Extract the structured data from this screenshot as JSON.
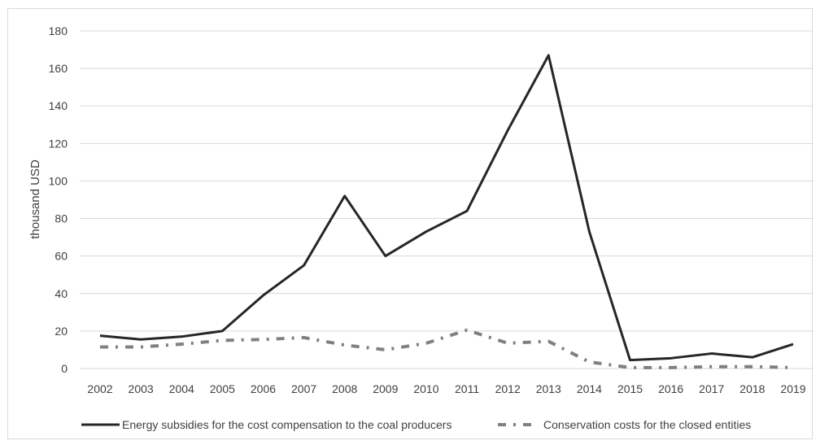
{
  "chart_data": {
    "type": "line",
    "title": "",
    "xlabel": "",
    "ylabel": "thousand USD",
    "ylim": [
      0,
      180
    ],
    "ytick_step": 20,
    "grid": true,
    "legend_position": "bottom",
    "categories": [
      "2002",
      "2003",
      "2004",
      "2005",
      "2006",
      "2007",
      "2008",
      "2009",
      "2010",
      "2011",
      "2012",
      "2013",
      "2014",
      "2015",
      "2016",
      "2017",
      "2018",
      "2019"
    ],
    "series": [
      {
        "name": "Energy subsidies for the cost compensation to the coal producers",
        "style": "solid",
        "color": "#262626",
        "values": [
          17.5,
          15.5,
          17,
          20,
          39,
          55,
          92,
          60,
          73,
          84,
          127,
          167,
          73,
          4.5,
          5.5,
          8,
          6,
          13
        ]
      },
      {
        "name": "Conservation costs for the closed entities",
        "style": "dash-dot",
        "color": "#808080",
        "values": [
          11.5,
          11.5,
          13,
          15,
          15.5,
          16.5,
          12.5,
          10,
          13.5,
          20.5,
          13.5,
          14.5,
          3.5,
          0.5,
          0.5,
          1,
          1,
          0.5
        ]
      }
    ]
  },
  "colors": {
    "grid": "#d9d9d9",
    "axis_text": "#404040"
  }
}
